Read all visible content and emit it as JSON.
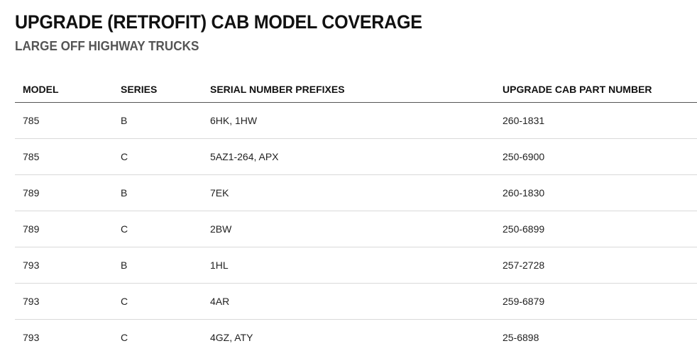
{
  "header": {
    "title": "UPGRADE (RETROFIT) CAB MODEL COVERAGE",
    "subtitle": "LARGE OFF HIGHWAY TRUCKS"
  },
  "table": {
    "columns": [
      "MODEL",
      "SERIES",
      "SERIAL NUMBER PREFIXES",
      "UPGRADE CAB PART NUMBER"
    ],
    "rows": [
      [
        "785",
        "B",
        "6HK, 1HW",
        "260-1831"
      ],
      [
        "785",
        "C",
        "5AZ1-264, APX",
        "250-6900"
      ],
      [
        "789",
        "B",
        "7EK",
        "260-1830"
      ],
      [
        "789",
        "C",
        "2BW",
        "250-6899"
      ],
      [
        "793",
        "B",
        "1HL",
        "257-2728"
      ],
      [
        "793",
        "C",
        "4AR",
        "259-6879"
      ],
      [
        "793",
        "C",
        "4GZ, ATY",
        "25-6898"
      ]
    ]
  }
}
